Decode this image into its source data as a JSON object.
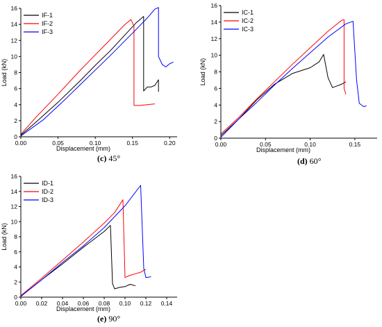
{
  "chart_data": [
    {
      "type": "line",
      "panel_letter": "(c)",
      "panel_angle": "45°",
      "xlabel": "Displacement (mm)",
      "ylabel": "Load (kN)",
      "xlim": [
        0,
        0.21
      ],
      "ylim": [
        0,
        16
      ],
      "x_ticks": [
        0.0,
        0.05,
        0.1,
        0.15,
        0.2
      ],
      "x_tick_labels": [
        "0.00",
        "0.05",
        "0.10",
        "0.15",
        "0.20"
      ],
      "y_ticks": [
        0,
        2,
        4,
        6,
        8,
        10,
        12,
        14,
        16
      ],
      "y_tick_labels": [
        "0",
        "2",
        "4",
        "6",
        "8",
        "10",
        "12",
        "14",
        "16"
      ],
      "legend_position": "top-left",
      "series": [
        {
          "name": "IF-1",
          "color": "#000000",
          "x": [
            0,
            0.02,
            0.05,
            0.08,
            0.1,
            0.12,
            0.14,
            0.155,
            0.165,
            0.165,
            0.17,
            0.175,
            0.18,
            0.185,
            0.185
          ],
          "y": [
            0.2,
            1.8,
            4.3,
            7.0,
            8.9,
            10.7,
            12.7,
            14.2,
            15.0,
            5.7,
            6.2,
            6.2,
            6.4,
            7.1,
            5.6
          ]
        },
        {
          "name": "IF-2",
          "color": "#ff0000",
          "x": [
            0,
            0.02,
            0.05,
            0.08,
            0.1,
            0.12,
            0.14,
            0.148,
            0.152,
            0.152,
            0.16,
            0.17,
            0.18
          ],
          "y": [
            0.3,
            2.4,
            5.3,
            8.3,
            10.2,
            12.1,
            14.0,
            14.6,
            13.8,
            3.9,
            3.9,
            4.0,
            4.1
          ]
        },
        {
          "name": "IF-3",
          "color": "#0000ff",
          "x": [
            0,
            0.03,
            0.06,
            0.09,
            0.12,
            0.15,
            0.17,
            0.18,
            0.185,
            0.185,
            0.19,
            0.195,
            0.2,
            0.205
          ],
          "y": [
            0.1,
            2.1,
            4.7,
            7.4,
            10.1,
            12.9,
            14.8,
            15.9,
            16.1,
            10.0,
            9.0,
            8.7,
            9.1,
            9.3
          ]
        }
      ]
    },
    {
      "type": "line",
      "panel_letter": "(d)",
      "panel_angle": "60°",
      "xlabel": "Displacement (mm)",
      "ylabel": "Load (kN)",
      "xlim": [
        0,
        0.175
      ],
      "ylim": [
        0,
        16
      ],
      "x_ticks": [
        0.0,
        0.05,
        0.1,
        0.15
      ],
      "x_tick_labels": [
        "0.00",
        "0.05",
        "0.10",
        "0.15"
      ],
      "y_ticks": [
        0,
        2,
        4,
        6,
        8,
        10,
        12,
        14,
        16
      ],
      "y_tick_labels": [
        "0",
        "2",
        "4",
        "6",
        "8",
        "10",
        "12",
        "14",
        "16"
      ],
      "legend_position": "top-left",
      "series": [
        {
          "name": "IC-1",
          "color": "#000000",
          "x": [
            0,
            0.02,
            0.04,
            0.06,
            0.08,
            0.1,
            0.11,
            0.115,
            0.12,
            0.125,
            0.13,
            0.135,
            0.14
          ],
          "y": [
            0.3,
            2.3,
            4.6,
            6.5,
            7.8,
            8.5,
            9.2,
            10.1,
            7.3,
            6.1,
            6.3,
            6.5,
            6.8
          ]
        },
        {
          "name": "IC-2",
          "color": "#ff0000",
          "x": [
            0,
            0.02,
            0.04,
            0.06,
            0.08,
            0.1,
            0.12,
            0.135,
            0.138,
            0.138,
            0.14
          ],
          "y": [
            0.5,
            2.5,
            4.7,
            6.8,
            8.9,
            10.9,
            12.9,
            14.2,
            14.3,
            6.0,
            5.3
          ]
        },
        {
          "name": "IC-3",
          "color": "#0000ff",
          "x": [
            0,
            0.02,
            0.04,
            0.06,
            0.08,
            0.1,
            0.12,
            0.14,
            0.148,
            0.152,
            0.155,
            0.16,
            0.163
          ],
          "y": [
            0.1,
            2.3,
            4.3,
            6.4,
            8.4,
            10.3,
            12.2,
            13.8,
            14.1,
            7.0,
            4.2,
            3.8,
            3.9
          ]
        }
      ]
    },
    {
      "type": "line",
      "panel_letter": "(e)",
      "panel_angle": "90°",
      "xlabel": "Displacement (mm)",
      "ylabel": "Load (kN)",
      "xlim": [
        0,
        0.15
      ],
      "ylim": [
        0,
        16
      ],
      "x_ticks": [
        0.0,
        0.02,
        0.04,
        0.06,
        0.08,
        0.1,
        0.12,
        0.14
      ],
      "x_tick_labels": [
        "0.00",
        "0.02",
        "0.04",
        "0.06",
        "0.08",
        "0.10",
        "0.12",
        "0.14"
      ],
      "y_ticks": [
        0,
        2,
        4,
        6,
        8,
        10,
        12,
        14,
        16
      ],
      "y_tick_labels": [
        "0",
        "2",
        "4",
        "6",
        "8",
        "10",
        "12",
        "14",
        "16"
      ],
      "legend_position": "top-left",
      "series": [
        {
          "name": "ID-1",
          "color": "#000000",
          "x": [
            0,
            0.02,
            0.04,
            0.06,
            0.08,
            0.086,
            0.088,
            0.09,
            0.095,
            0.1,
            0.105,
            0.11
          ],
          "y": [
            0.1,
            2.3,
            4.4,
            6.6,
            8.7,
            9.5,
            1.8,
            1.1,
            1.3,
            1.4,
            1.7,
            1.5
          ]
        },
        {
          "name": "ID-2",
          "color": "#ff0000",
          "x": [
            0,
            0.02,
            0.04,
            0.06,
            0.08,
            0.09,
            0.098,
            0.1,
            0.105,
            0.11,
            0.115,
            0.12
          ],
          "y": [
            0.2,
            2.5,
            4.9,
            7.3,
            9.8,
            11.2,
            12.9,
            2.6,
            2.9,
            3.1,
            3.3,
            3.7
          ]
        },
        {
          "name": "ID-3",
          "color": "#0000ff",
          "x": [
            0,
            0.02,
            0.04,
            0.06,
            0.08,
            0.1,
            0.115,
            0.118,
            0.12,
            0.125
          ],
          "y": [
            0.1,
            2.3,
            4.6,
            6.8,
            9.2,
            12.1,
            14.8,
            3.8,
            2.6,
            2.7
          ]
        }
      ]
    }
  ]
}
